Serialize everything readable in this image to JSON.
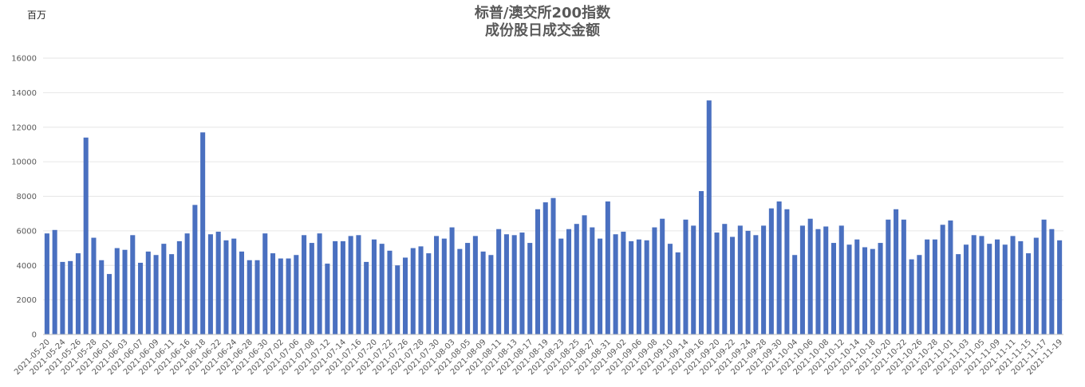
{
  "chart_data": {
    "type": "bar",
    "title": [
      "标普/澳交所200指数",
      "成份股日成交金额"
    ],
    "ylabel": "百万",
    "ylim": [
      0,
      16000
    ],
    "yticks": [
      0,
      2000,
      4000,
      6000,
      8000,
      10000,
      12000,
      14000,
      16000
    ],
    "grid": true,
    "bar_color": "#4a70c0",
    "categories": [
      "2021-05-20",
      "2021-05-21",
      "2021-05-24",
      "2021-05-25",
      "2021-05-26",
      "2021-05-27",
      "2021-05-28",
      "2021-05-31",
      "2021-06-01",
      "2021-06-02",
      "2021-06-03",
      "2021-06-04",
      "2021-06-07",
      "2021-06-08",
      "2021-06-09",
      "2021-06-10",
      "2021-06-11",
      "2021-06-15",
      "2021-06-16",
      "2021-06-17",
      "2021-06-18",
      "2021-06-21",
      "2021-06-22",
      "2021-06-23",
      "2021-06-24",
      "2021-06-25",
      "2021-06-28",
      "2021-06-29",
      "2021-06-30",
      "2021-07-01",
      "2021-07-02",
      "2021-07-05",
      "2021-07-06",
      "2021-07-07",
      "2021-07-08",
      "2021-07-09",
      "2021-07-12",
      "2021-07-13",
      "2021-07-14",
      "2021-07-15",
      "2021-07-16",
      "2021-07-19",
      "2021-07-20",
      "2021-07-21",
      "2021-07-22",
      "2021-07-23",
      "2021-07-26",
      "2021-07-27",
      "2021-07-28",
      "2021-07-29",
      "2021-07-30",
      "2021-08-02",
      "2021-08-03",
      "2021-08-04",
      "2021-08-05",
      "2021-08-06",
      "2021-08-09",
      "2021-08-10",
      "2021-08-11",
      "2021-08-12",
      "2021-08-13",
      "2021-08-16",
      "2021-08-17",
      "2021-08-18",
      "2021-08-19",
      "2021-08-20",
      "2021-08-23",
      "2021-08-24",
      "2021-08-25",
      "2021-08-26",
      "2021-08-27",
      "2021-08-30",
      "2021-08-31",
      "2021-09-01",
      "2021-09-02",
      "2021-09-03",
      "2021-09-06",
      "2021-09-07",
      "2021-09-08",
      "2021-09-09",
      "2021-09-10",
      "2021-09-13",
      "2021-09-14",
      "2021-09-15",
      "2021-09-16",
      "2021-09-17",
      "2021-09-20",
      "2021-09-21",
      "2021-09-22",
      "2021-09-23",
      "2021-09-24",
      "2021-09-27",
      "2021-09-28",
      "2021-09-29",
      "2021-09-30",
      "2021-10-01",
      "2021-10-04",
      "2021-10-05",
      "2021-10-06",
      "2021-10-07",
      "2021-10-08",
      "2021-10-11",
      "2021-10-12",
      "2021-10-13",
      "2021-10-14",
      "2021-10-15",
      "2021-10-18",
      "2021-10-19",
      "2021-10-20",
      "2021-10-21",
      "2021-10-22",
      "2021-10-25",
      "2021-10-26",
      "2021-10-27",
      "2021-10-28",
      "2021-10-29",
      "2021-11-01",
      "2021-11-02",
      "2021-11-03",
      "2021-11-04",
      "2021-11-05",
      "2021-11-08",
      "2021-11-09",
      "2021-11-10",
      "2021-11-11",
      "2021-11-12",
      "2021-11-15",
      "2021-11-16",
      "2021-11-17",
      "2021-11-18",
      "2021-11-19"
    ],
    "values": [
      5850,
      6050,
      4200,
      4250,
      4700,
      11400,
      5600,
      4300,
      3500,
      5000,
      4900,
      5750,
      4150,
      4800,
      4600,
      5250,
      4650,
      5400,
      5850,
      7500,
      11700,
      5800,
      5950,
      5450,
      5550,
      4800,
      4300,
      4300,
      5850,
      4700,
      4400,
      4400,
      4600,
      5750,
      5300,
      5850,
      4100,
      5400,
      5400,
      5700,
      5750,
      4200,
      5500,
      5250,
      4850,
      4000,
      4450,
      5000,
      5100,
      4700,
      5700,
      5550,
      6200,
      4950,
      5300,
      5700,
      4800,
      4600,
      6100,
      5800,
      5750,
      5900,
      5300,
      7250,
      7650,
      7900,
      5550,
      6100,
      6400,
      6900,
      6200,
      5550,
      7700,
      5800,
      5950,
      5400,
      5500,
      5450,
      6200,
      6700,
      5250,
      4750,
      6650,
      6300,
      8300,
      13550,
      5900,
      6400,
      5650,
      6300,
      6000,
      5750,
      6300,
      7300,
      7700,
      7250,
      4600,
      6300,
      6700,
      6100,
      6250,
      5300,
      6300,
      5200,
      5500,
      5050,
      4950,
      5300,
      6650,
      7250,
      6650,
      4350,
      4600,
      5500,
      5500,
      6350,
      6600,
      4650,
      5200,
      5750,
      5700,
      5250,
      5500,
      5200,
      5700,
      5400,
      4700,
      5600,
      6650,
      6100,
      5450
    ],
    "xtick_labels": [
      "2021-05-20",
      "2021-05-24",
      "2021-05-26",
      "2021-05-28",
      "2021-06-01",
      "2021-06-03",
      "2021-06-07",
      "2021-06-09",
      "2021-06-11",
      "2021-06-16",
      "2021-06-18",
      "2021-06-22",
      "2021-06-24",
      "2021-06-28",
      "2021-06-30",
      "2021-07-02",
      "2021-07-06",
      "2021-07-08",
      "2021-07-12",
      "2021-07-14",
      "2021-07-16",
      "2021-07-20",
      "2021-07-22",
      "2021-07-26",
      "2021-07-28",
      "2021-07-30",
      "2021-08-03",
      "2021-08-05",
      "2021-08-09",
      "2021-08-11",
      "2021-08-13",
      "2021-08-17",
      "2021-08-19",
      "2021-08-23",
      "2021-08-25",
      "2021-08-27",
      "2021-08-31",
      "2021-09-02",
      "2021-09-06",
      "2021-09-08",
      "2021-09-10",
      "2021-09-14",
      "2021-09-16",
      "2021-09-20",
      "2021-09-22",
      "2021-09-24",
      "2021-09-28",
      "2021-09-30",
      "2021-10-04",
      "2021-10-06",
      "2021-10-08",
      "2021-10-12",
      "2021-10-14",
      "2021-10-18",
      "2021-10-20",
      "2021-10-22",
      "2021-10-26",
      "2021-10-28",
      "2021-11-01",
      "2021-11-03",
      "2021-11-05",
      "2021-11-09",
      "2021-11-11",
      "2021-11-15",
      "2021-11-17",
      "2021-11-19"
    ]
  }
}
